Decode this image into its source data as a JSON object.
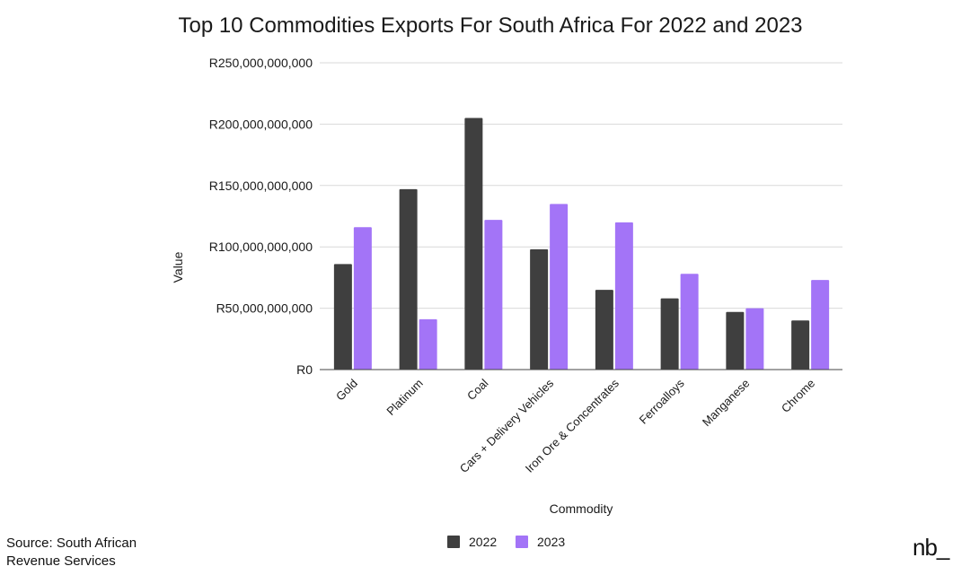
{
  "chart_data": {
    "type": "bar",
    "title": "Top 10 Commodities Exports For South Africa For 2022 and 2023",
    "xlabel": "Commodity",
    "ylabel": "Value",
    "ylim": [
      0,
      250000000000
    ],
    "yticks": [
      "R0",
      "R50,000,000,000",
      "R100,000,000,000",
      "R150,000,000,000",
      "R200,000,000,000",
      "R250,000,000,000"
    ],
    "ytick_values": [
      0,
      50000000000,
      100000000000,
      150000000000,
      200000000000,
      250000000000
    ],
    "grid": true,
    "legend": "bottom",
    "categories": [
      "Gold",
      "Platinum",
      "Coal",
      "Cars + Delivery Vehicles",
      "Iron Ore & Concentrates",
      "Ferroalloys",
      "Manganese",
      "Chrome"
    ],
    "series": [
      {
        "name": "2022",
        "color": "#3f3f3f",
        "values": [
          86000000000,
          147000000000,
          205000000000,
          98000000000,
          65000000000,
          58000000000,
          47000000000,
          40000000000
        ]
      },
      {
        "name": "2023",
        "color": "#a374f7",
        "values": [
          116000000000,
          41000000000,
          122000000000,
          135000000000,
          120000000000,
          78000000000,
          50000000000,
          73000000000
        ]
      }
    ]
  },
  "footer": {
    "source_text": "Source: South African Revenue Services",
    "brand": "nb_"
  }
}
